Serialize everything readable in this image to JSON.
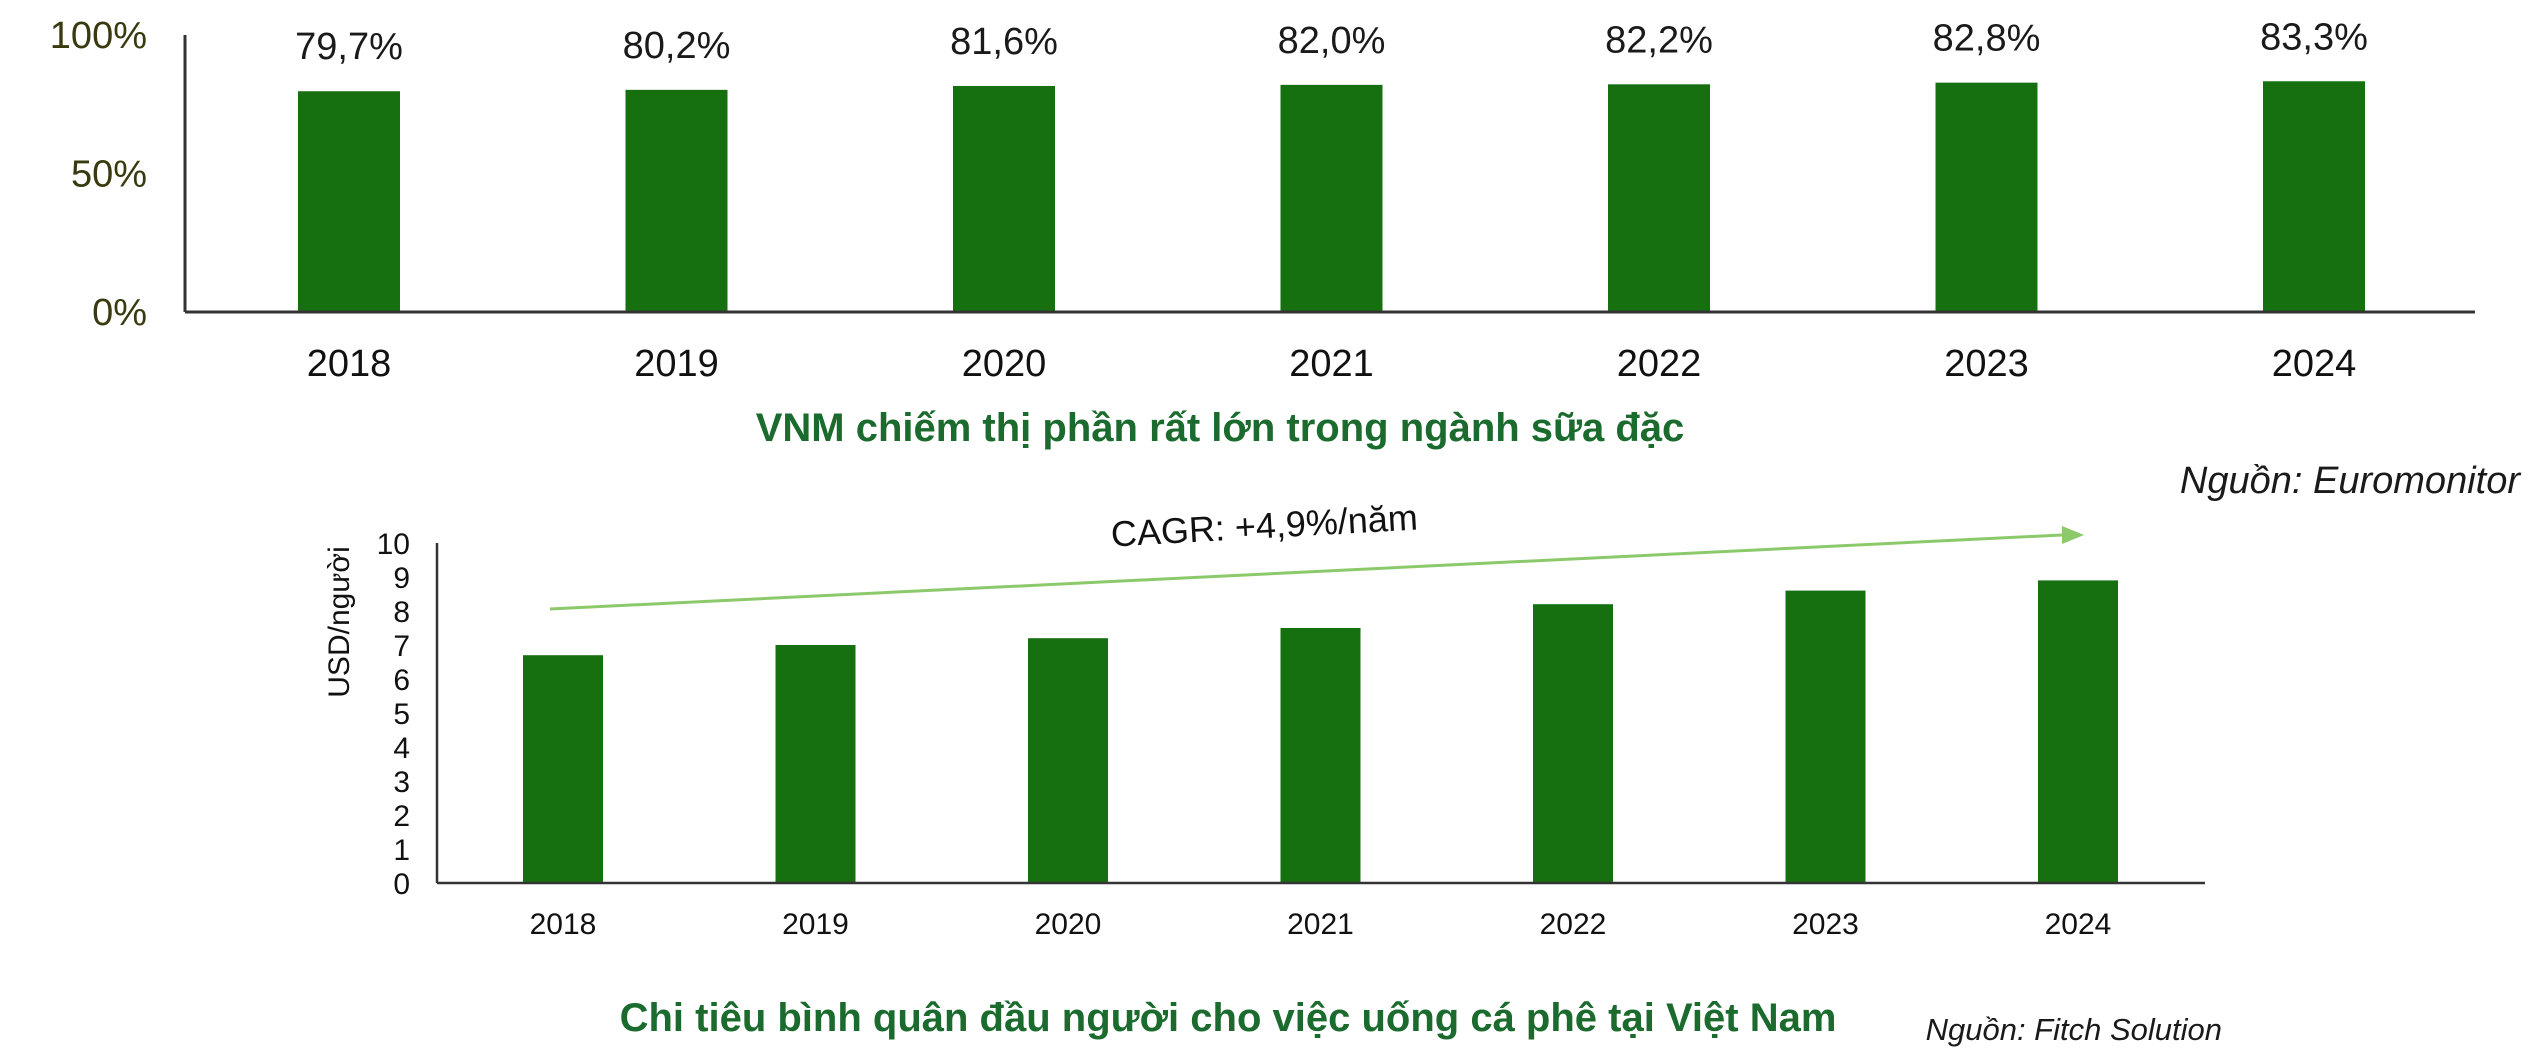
{
  "colors": {
    "bar": "#16700f",
    "caption": "#1b6b2e",
    "trend": "#8cc96b",
    "axis": "#333333"
  },
  "chart_data": [
    {
      "type": "bar",
      "categories": [
        "2018",
        "2019",
        "2020",
        "2021",
        "2022",
        "2023",
        "2024"
      ],
      "values": [
        79.7,
        80.2,
        81.6,
        82.0,
        82.2,
        82.8,
        83.3
      ],
      "data_labels": [
        "79,7%",
        "80,2%",
        "81,6%",
        "82,0%",
        "82,2%",
        "82,8%",
        "83,3%"
      ],
      "ylim": [
        0,
        100
      ],
      "yticks": [
        "0%",
        "50%",
        "100%"
      ],
      "ytick_values": [
        0,
        50,
        100
      ],
      "caption": "VNM chiếm thị phần rất lớn trong ngành sữa đặc",
      "source": "Nguồn: Euromonitor"
    },
    {
      "type": "bar",
      "categories": [
        "2018",
        "2019",
        "2020",
        "2021",
        "2022",
        "2023",
        "2024"
      ],
      "values": [
        6.7,
        7.0,
        7.2,
        7.5,
        8.2,
        8.6,
        8.9
      ],
      "ylim": [
        0,
        10
      ],
      "yticks": [
        "0",
        "1",
        "2",
        "3",
        "4",
        "5",
        "6",
        "7",
        "8",
        "9",
        "10"
      ],
      "ytick_values": [
        0,
        1,
        2,
        3,
        4,
        5,
        6,
        7,
        8,
        9,
        10
      ],
      "ylabel": "USD/người",
      "annotation": "CAGR: +4,9%/năm",
      "caption": "Chi tiêu bình quân đầu người cho việc uống cá phê tại Việt Nam",
      "source": "Nguồn: Fitch Solution"
    }
  ]
}
